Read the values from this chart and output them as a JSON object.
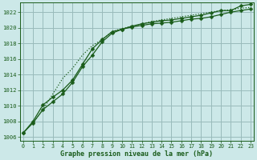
{
  "title": "Graphe pression niveau de la mer (hPa)",
  "bg_color": "#cce8e8",
  "grid_color": "#99bbbb",
  "line_color": "#1a5c1a",
  "xlim": [
    -0.3,
    23.3
  ],
  "ylim": [
    1005.5,
    1023.2
  ],
  "yticks": [
    1006,
    1008,
    1010,
    1012,
    1014,
    1016,
    1018,
    1020,
    1022
  ],
  "xticks": [
    0,
    1,
    2,
    3,
    4,
    5,
    6,
    7,
    8,
    9,
    10,
    11,
    12,
    13,
    14,
    15,
    16,
    17,
    18,
    19,
    20,
    21,
    22,
    23
  ],
  "series1_x": [
    0,
    1,
    2,
    3,
    4,
    5,
    6,
    7,
    8,
    9,
    10,
    11,
    12,
    13,
    14,
    15,
    16,
    17,
    18,
    19,
    20,
    21,
    22,
    23
  ],
  "series1_y": [
    1006.5,
    1008.0,
    1010.1,
    1011.1,
    1012.0,
    1013.3,
    1015.3,
    1017.3,
    1018.5,
    1019.5,
    1019.8,
    1020.1,
    1020.3,
    1020.5,
    1020.6,
    1020.7,
    1020.9,
    1021.1,
    1021.2,
    1021.4,
    1021.7,
    1022.0,
    1022.2,
    1022.4
  ],
  "series2_x": [
    0,
    1,
    2,
    3,
    4,
    5,
    6,
    7,
    8,
    9,
    10,
    11,
    12,
    13,
    14,
    15,
    16,
    17,
    18,
    19,
    20,
    21,
    22,
    23
  ],
  "series2_y": [
    1006.5,
    1007.8,
    1009.5,
    1010.5,
    1011.5,
    1013.0,
    1015.0,
    1016.5,
    1018.2,
    1019.3,
    1019.8,
    1020.2,
    1020.5,
    1020.7,
    1020.9,
    1021.0,
    1021.2,
    1021.4,
    1021.6,
    1021.9,
    1022.2,
    1022.2,
    1022.8,
    1023.0
  ],
  "series3_x": [
    1,
    2,
    3,
    4,
    5,
    6,
    7,
    8,
    9,
    10,
    11,
    12,
    13,
    14,
    15,
    16,
    17,
    18,
    19,
    20,
    21,
    22,
    23
  ],
  "series3_y": [
    1007.8,
    1009.5,
    1011.5,
    1013.5,
    1014.8,
    1016.5,
    1017.7,
    1018.5,
    1019.5,
    1019.9,
    1020.2,
    1020.5,
    1020.8,
    1021.0,
    1021.2,
    1021.4,
    1021.6,
    1021.8,
    1022.0,
    1022.2,
    1022.3,
    1022.5,
    1022.6
  ]
}
